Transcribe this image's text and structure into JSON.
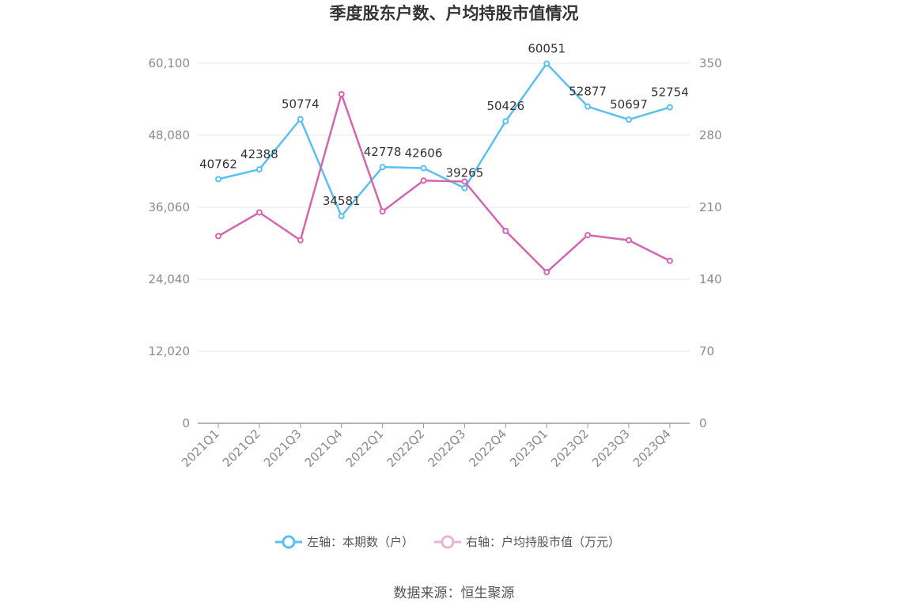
{
  "chart_data": {
    "type": "line",
    "title": "季度股东户数、户均持股市值情况",
    "categories": [
      "2021Q1",
      "2021Q2",
      "2021Q3",
      "2021Q4",
      "2022Q1",
      "2022Q2",
      "2022Q3",
      "2022Q4",
      "2023Q1",
      "2023Q2",
      "2023Q3",
      "2023Q4"
    ],
    "left_axis": {
      "ylim": [
        0,
        60100
      ],
      "tick_values": [
        0,
        12020,
        24040,
        36060,
        48080,
        60100
      ],
      "tick_labels": [
        "0",
        "12,020",
        "24,040",
        "36,060",
        "48,080",
        "60,100"
      ]
    },
    "right_axis": {
      "ylim": [
        0,
        350
      ],
      "tick_values": [
        0,
        70,
        140,
        210,
        280,
        350
      ],
      "tick_labels": [
        "0",
        "70",
        "140",
        "210",
        "280",
        "350"
      ]
    },
    "series": [
      {
        "name": "左轴：本期数（户）",
        "axis": "left",
        "color": "#5bc0ef",
        "values": [
          40762,
          42388,
          50774,
          34581,
          42778,
          42606,
          39265,
          50426,
          60051,
          52877,
          50697,
          52754
        ],
        "labels": [
          "40762",
          "42388",
          "50774",
          "34581",
          "42778",
          "42606",
          "39265",
          "50426",
          "60051",
          "52877",
          "50697",
          "52754"
        ]
      },
      {
        "name": "右轴：户均持股市值（万元）",
        "axis": "right",
        "color": "#d465b0",
        "values": [
          182,
          205,
          178,
          320,
          206,
          236,
          235,
          187,
          147,
          183,
          178,
          158
        ]
      }
    ],
    "grid": true,
    "legend_position": "bottom-center"
  },
  "source": "数据来源：恒生聚源"
}
